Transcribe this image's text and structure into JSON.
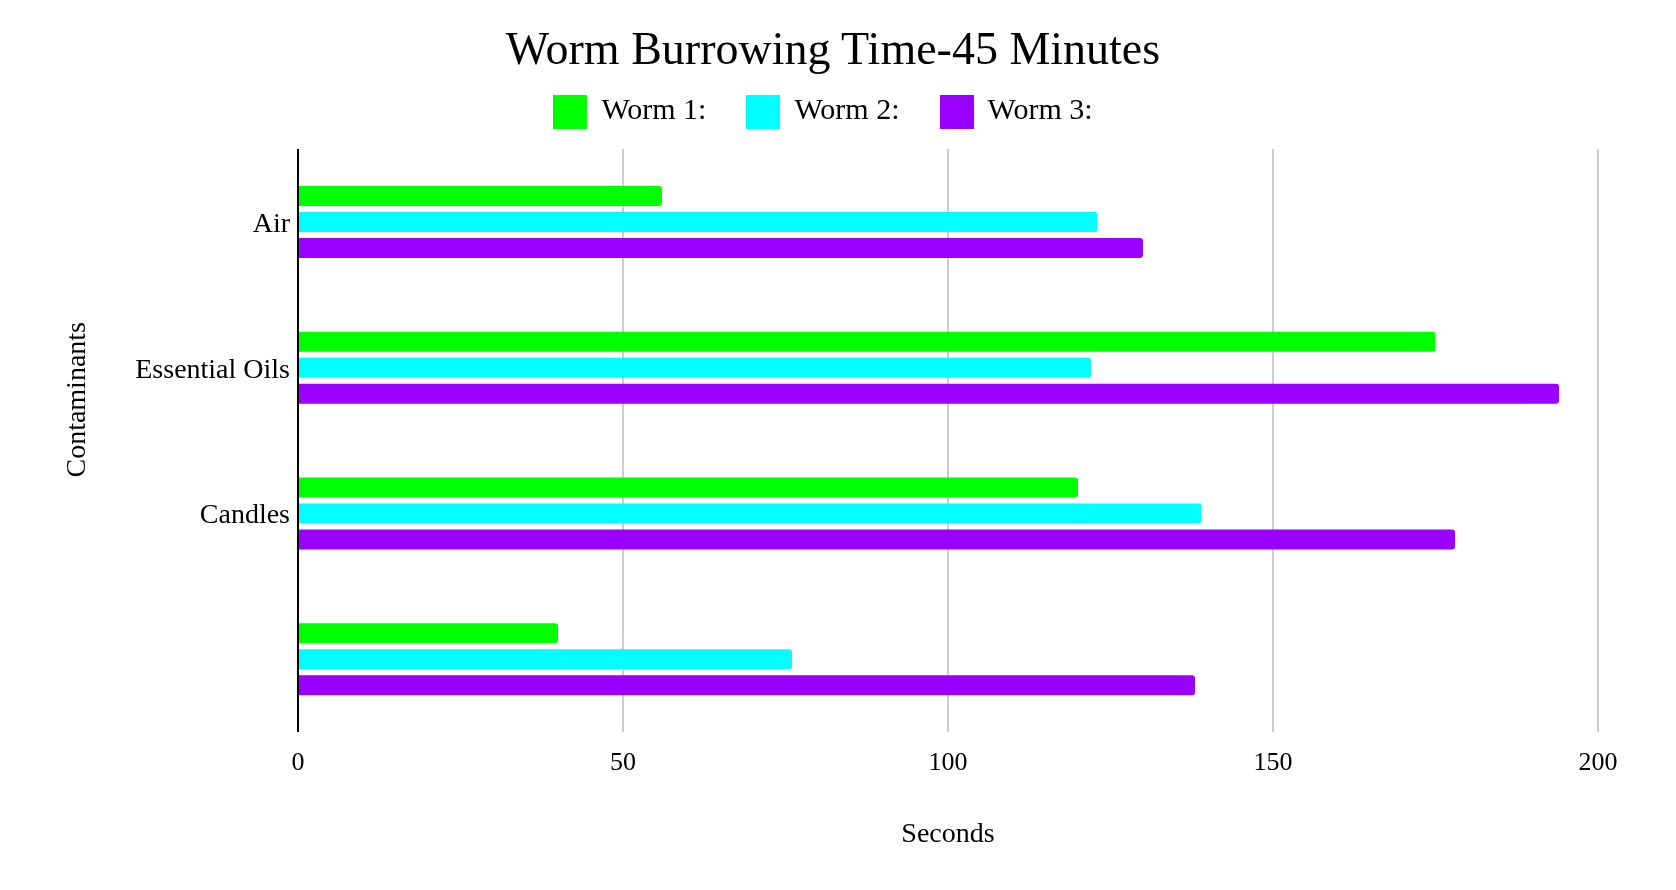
{
  "chart_data": {
    "type": "bar",
    "orientation": "horizontal",
    "title": "Worm Burrowing Time-45 Minutes",
    "xlabel": "Seconds",
    "ylabel": "Contaminants",
    "categories": [
      "Air",
      "Essential Oils",
      "Candles",
      null
    ],
    "series": [
      {
        "name": "Worm 1:",
        "color": "#00ff00",
        "values": [
          56,
          175,
          120,
          40
        ]
      },
      {
        "name": "Worm 2:",
        "color": "#00ffff",
        "values": [
          123,
          122,
          139,
          76
        ]
      },
      {
        "name": "Worm 3:",
        "color": "#9900ff",
        "values": [
          130,
          194,
          178,
          138
        ]
      }
    ],
    "xlim": [
      0,
      200
    ],
    "xticks": [
      0,
      50,
      100,
      150,
      200
    ],
    "grid": "x",
    "legend": "top"
  }
}
